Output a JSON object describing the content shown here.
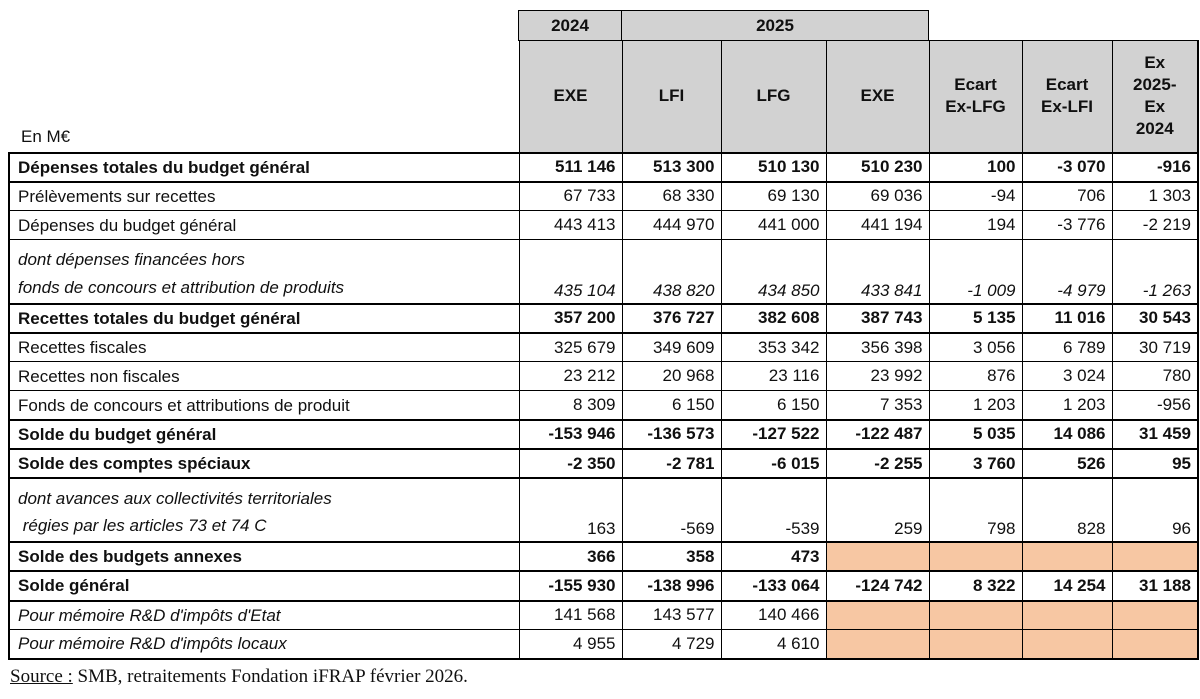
{
  "units_label": "En M€",
  "header": {
    "year_2024": "2024",
    "year_2025": "2025",
    "columns": [
      "EXE",
      "LFI",
      "LFG",
      "EXE",
      "Ecart\nEx-LFG",
      "Ecart\nEx-LFI",
      "Ex\n2025-\nEx\n2024"
    ]
  },
  "rows": [
    {
      "label": "Dépenses totales du budget général",
      "bold": true,
      "values": [
        "511 146",
        "513 300",
        "510 130",
        "510 230",
        "100",
        "-3 070",
        "-916"
      ]
    },
    {
      "label": "Prélèvements sur recettes",
      "values": [
        "67 733",
        "68 330",
        "69 130",
        "69 036",
        "-94",
        "706",
        "1 303"
      ]
    },
    {
      "label": "Dépenses du budget général",
      "values": [
        "443 413",
        "444 970",
        "441 000",
        "441 194",
        "194",
        "-3 776",
        "-2 219"
      ]
    },
    {
      "label": "dont dépenses financées hors\nfonds de concours et attribution de produits",
      "italic_label": true,
      "italic_values": true,
      "values": [
        "435 104",
        "438 820",
        "434 850",
        "433 841",
        "-1 009",
        "-4 979",
        "-1 263"
      ]
    },
    {
      "label": "Recettes totales du budget général",
      "bold": true,
      "values": [
        "357 200",
        "376 727",
        "382 608",
        "387 743",
        "5 135",
        "11 016",
        "30 543"
      ]
    },
    {
      "label": "Recettes fiscales",
      "values": [
        "325 679",
        "349 609",
        "353 342",
        "356 398",
        "3 056",
        "6 789",
        "30 719"
      ]
    },
    {
      "label": "Recettes non fiscales",
      "values": [
        "23 212",
        "20 968",
        "23 116",
        "23 992",
        "876",
        "3 024",
        "780"
      ]
    },
    {
      "label": "Fonds de concours et attributions de produit",
      "values": [
        "8 309",
        "6 150",
        "6 150",
        "7 353",
        "1 203",
        "1 203",
        "-956"
      ]
    },
    {
      "label": "Solde du budget général",
      "bold": true,
      "values": [
        "-153 946",
        "-136 573",
        "-127 522",
        "-122 487",
        "5 035",
        "14 086",
        "31 459"
      ]
    },
    {
      "label": "Solde des comptes spéciaux",
      "bold": true,
      "values": [
        "-2 350",
        "-2 781",
        "-6 015",
        "-2 255",
        "3 760",
        "526",
        "95"
      ]
    },
    {
      "label": "dont avances aux collectivités territoriales\n régies par les articles 73 et 74 C",
      "italic_label": true,
      "values": [
        "163",
        "-569",
        "-539",
        "259",
        "798",
        "828",
        "96"
      ]
    },
    {
      "label": "Solde des budgets annexes",
      "bold": true,
      "values": [
        "366",
        "358",
        "473",
        null,
        null,
        null,
        null
      ]
    },
    {
      "label": "Solde général",
      "bold": true,
      "values": [
        "-155 930",
        "-138 996",
        "-133 064",
        "-124 742",
        "8 322",
        "14 254",
        "31 188"
      ]
    },
    {
      "label": "Pour mémoire R&D d'impôts d'Etat",
      "italic_label": true,
      "values": [
        "141 568",
        "143 577",
        "140 466",
        null,
        null,
        null,
        null
      ]
    },
    {
      "label": "Pour mémoire R&D d'impôts locaux",
      "italic_label": true,
      "values": [
        "4 955",
        "4 729",
        "4 610",
        null,
        null,
        null,
        null
      ]
    }
  ],
  "source": {
    "prefix": "Source :",
    "text": " SMB, retraitements Fondation iFRAP février 2026."
  },
  "colors": {
    "header_bg": "#d2d2d2",
    "highlight_bg": "#f7c7a3",
    "border": "#000000"
  }
}
